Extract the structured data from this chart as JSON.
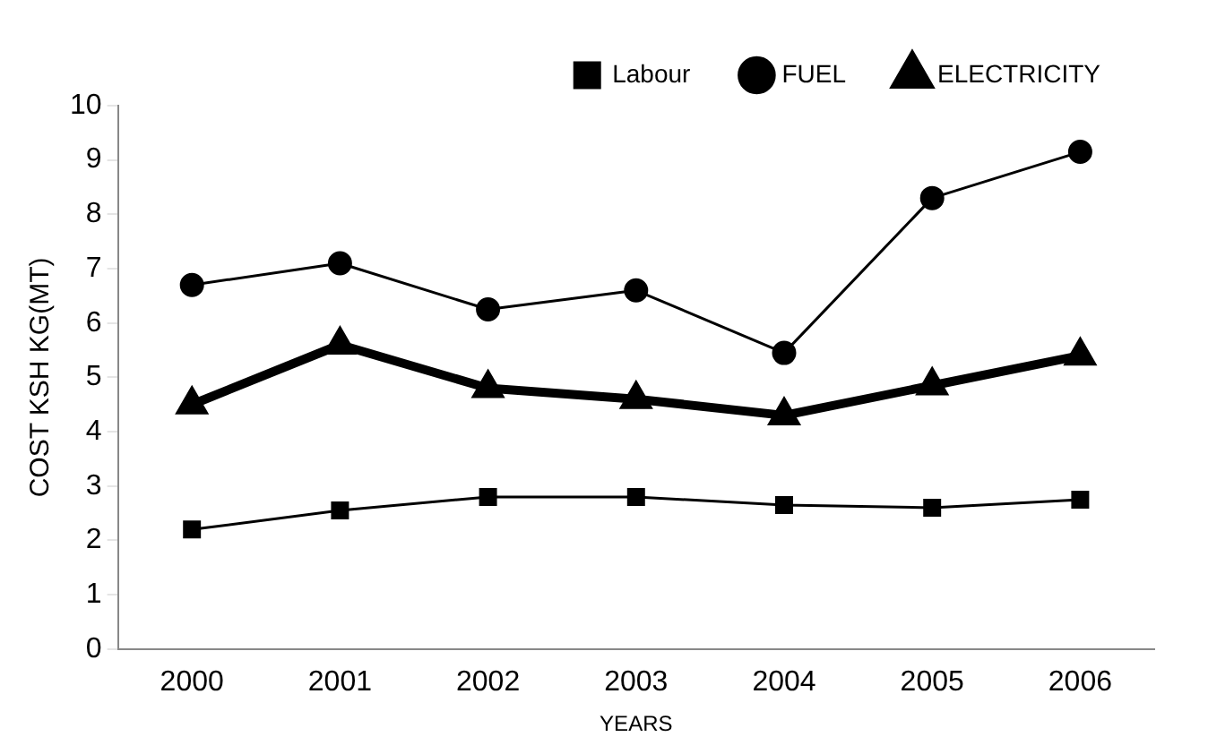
{
  "chart_data": {
    "type": "line",
    "xlabel": "YEARS",
    "ylabel": "COST KSH KG(MT)",
    "categories": [
      "2000",
      "2001",
      "2002",
      "2003",
      "2004",
      "2005",
      "2006"
    ],
    "series": [
      {
        "name": "Labour",
        "color": "#000000",
        "marker": "square",
        "values": [
          2.2,
          2.55,
          2.8,
          2.8,
          2.65,
          2.6,
          2.75
        ]
      },
      {
        "name": "FUEL",
        "color": "#000000",
        "marker": "circle",
        "values": [
          6.7,
          7.1,
          6.25,
          6.6,
          5.45,
          8.3,
          9.15
        ]
      },
      {
        "name": "ELECTRICITY",
        "color": "#000000",
        "marker": "triangle",
        "values": [
          4.5,
          5.6,
          4.8,
          4.6,
          4.3,
          4.85,
          5.4
        ]
      }
    ],
    "ylim": [
      0,
      10
    ],
    "yticks": [
      0,
      1,
      2,
      3,
      4,
      5,
      6,
      7,
      8,
      9,
      10
    ],
    "grid": false,
    "legend": "top",
    "line_style": "solid"
  }
}
